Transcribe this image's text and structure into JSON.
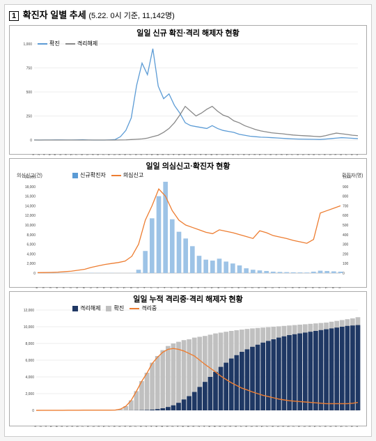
{
  "page": {
    "box_number": "1",
    "main_title": "확진자 일별 추세",
    "subtitle": "(5.22. 0시 기준, 11,142명)"
  },
  "chart1": {
    "type": "line",
    "title": "일일 신규 확진·격리 해제자 현황",
    "legend": [
      {
        "label": "확진",
        "color": "#5b9bd5",
        "style": "line"
      },
      {
        "label": "격리해제",
        "color": "#888888",
        "style": "line"
      }
    ],
    "ylim": [
      0,
      1000
    ],
    "ytick_step": 250,
    "x_labels": [
      "1.20",
      "1.22",
      "1.24",
      "1.26",
      "1.28",
      "2.1",
      "2.3",
      "2.5",
      "2.7",
      "2.9",
      "2.11",
      "2.13",
      "2.15",
      "2.17",
      "2.19",
      "2.21",
      "2.23",
      "2.25",
      "2.27",
      "2.29",
      "3.2",
      "3.4",
      "3.6",
      "3.8",
      "3.10",
      "3.12",
      "3.14",
      "3.16",
      "3.18",
      "3.20",
      "3.22",
      "3.24",
      "3.26",
      "3.28",
      "3.30",
      "4.1",
      "4.3",
      "4.5",
      "4.7",
      "4.9",
      "4.11",
      "4.13",
      "4.15",
      "4.17",
      "4.19",
      "4.21",
      "4.23",
      "4.25",
      "4.27",
      "4.29",
      "5.1",
      "5.3",
      "5.5",
      "5.7",
      "5.9",
      "5.11",
      "5.13",
      "5.15",
      "5.17",
      "5.19",
      "5.21"
    ],
    "series_confirmed": [
      1,
      0,
      1,
      1,
      2,
      2,
      1,
      1,
      2,
      3,
      1,
      0,
      0,
      0,
      2,
      5,
      35,
      100,
      230,
      570,
      800,
      680,
      950,
      560,
      430,
      480,
      360,
      280,
      180,
      150,
      140,
      130,
      120,
      150,
      120,
      100,
      90,
      80,
      60,
      50,
      40,
      35,
      30,
      28,
      25,
      22,
      18,
      15,
      12,
      10,
      9,
      8,
      7,
      6,
      10,
      15,
      20,
      25,
      22,
      18,
      15
    ],
    "series_released": [
      0,
      0,
      0,
      0,
      0,
      0,
      0,
      0,
      0,
      0,
      0,
      0,
      0,
      0,
      0,
      0,
      1,
      2,
      5,
      8,
      12,
      20,
      35,
      50,
      80,
      120,
      180,
      260,
      350,
      300,
      250,
      280,
      320,
      350,
      300,
      260,
      240,
      200,
      180,
      150,
      130,
      110,
      95,
      85,
      75,
      70,
      65,
      58,
      52,
      48,
      45,
      42,
      38,
      35,
      45,
      60,
      72,
      65,
      58,
      50,
      45
    ],
    "colors": {
      "confirmed": "#5b9bd5",
      "released": "#888888"
    },
    "background": "#ffffff",
    "grid_color": "#dddddd"
  },
  "chart2": {
    "type": "combo",
    "title": "일일 의심신고·확진자 현황",
    "legend": [
      {
        "label": "신규확진자",
        "color": "#5b9bd5",
        "style": "bar"
      },
      {
        "label": "의심신고",
        "color": "#ed7d31",
        "style": "line"
      }
    ],
    "y_left_label": "의심신고(건)",
    "y_right_label": "확진자(명)",
    "y_left_lim": [
      0,
      20000
    ],
    "y_left_tick_step": 2000,
    "y_right_lim": [
      0,
      1000
    ],
    "y_right_tick_step": 100,
    "x_labels": [
      "1.8",
      "1.10",
      "1.13",
      "1.16",
      "1.19",
      "1.22",
      "1.25",
      "1.28",
      "1.31",
      "2.3",
      "2.6",
      "2.9",
      "2.12",
      "2.15",
      "2.18",
      "2.21",
      "2.24",
      "2.27",
      "3.1",
      "3.4",
      "3.7",
      "3.10",
      "3.13",
      "3.16",
      "3.19",
      "3.22",
      "3.25",
      "3.28",
      "3.31",
      "4.3",
      "4.6",
      "4.9",
      "4.12",
      "4.15",
      "4.18",
      "4.21",
      "4.24",
      "4.27",
      "4.30",
      "5.3",
      "5.6",
      "5.9",
      "5.12",
      "5.15",
      "5.18",
      "5.21"
    ],
    "bars_confirmed": [
      1,
      0,
      1,
      1,
      2,
      0,
      2,
      1,
      3,
      2,
      1,
      2,
      1,
      0,
      2,
      35,
      230,
      570,
      800,
      950,
      560,
      430,
      360,
      280,
      180,
      140,
      130,
      150,
      120,
      100,
      80,
      50,
      35,
      28,
      22,
      15,
      12,
      10,
      8,
      7,
      6,
      15,
      25,
      22,
      18,
      15
    ],
    "line_suspect": [
      100,
      120,
      150,
      200,
      300,
      400,
      600,
      800,
      1200,
      1500,
      1800,
      2000,
      2200,
      2500,
      3500,
      6000,
      11000,
      14000,
      17500,
      16000,
      13000,
      11000,
      10000,
      9500,
      9000,
      8500,
      8200,
      9000,
      8700,
      8400,
      8000,
      7600,
      7200,
      8800,
      8400,
      7800,
      7500,
      7200,
      6800,
      6500,
      6200,
      7000,
      12500,
      13000,
      13500,
      14000
    ],
    "colors": {
      "bar": "#9dc3e6",
      "line": "#ed7d31"
    },
    "background": "#ffffff"
  },
  "chart3": {
    "type": "combo",
    "title": "일일 누적 격리중·격리 해제자 현황",
    "legend": [
      {
        "label": "격리해제",
        "color": "#1f3864",
        "style": "bar"
      },
      {
        "label": "확진",
        "color": "#c0c0c0",
        "style": "bar"
      },
      {
        "label": "격리중",
        "color": "#ed7d31",
        "style": "line"
      }
    ],
    "ylim": [
      0,
      12000
    ],
    "ytick_step": 2000,
    "x_labels": [
      "1.20",
      "1.22",
      "1.24",
      "1.26",
      "1.28",
      "1.30",
      "2.1",
      "2.3",
      "2.5",
      "2.7",
      "2.9",
      "2.11",
      "2.13",
      "2.15",
      "2.17",
      "2.19",
      "2.21",
      "2.23",
      "2.25",
      "2.27",
      "2.29",
      "3.2",
      "3.4",
      "3.6",
      "3.8",
      "3.10",
      "3.12",
      "3.14",
      "3.16",
      "3.18",
      "3.20",
      "3.22",
      "3.24",
      "3.26",
      "3.28",
      "3.30",
      "4.1",
      "4.3",
      "4.5",
      "4.7",
      "4.9",
      "4.11",
      "4.13",
      "4.15",
      "4.17",
      "4.19",
      "4.21",
      "4.23",
      "4.25",
      "4.27",
      "4.29",
      "5.1",
      "5.3",
      "5.5",
      "5.7",
      "5.9",
      "5.11",
      "5.13",
      "5.15",
      "5.17",
      "5.19",
      "5.21"
    ],
    "bars_confirmed_cum": [
      1,
      2,
      3,
      4,
      6,
      8,
      12,
      15,
      18,
      24,
      27,
      28,
      28,
      28,
      30,
      35,
      150,
      500,
      1200,
      2300,
      3500,
      4500,
      5700,
      6500,
      7200,
      7700,
      8000,
      8200,
      8400,
      8500,
      8700,
      8800,
      8900,
      9050,
      9200,
      9300,
      9400,
      9500,
      9580,
      9660,
      9740,
      9800,
      9850,
      9900,
      9950,
      10000,
      10050,
      10100,
      10150,
      10200,
      10250,
      10300,
      10350,
      10400,
      10450,
      10500,
      10600,
      10700,
      10800,
      10900,
      11000,
      11142
    ],
    "bars_released_cum": [
      0,
      0,
      0,
      0,
      0,
      0,
      0,
      0,
      0,
      0,
      0,
      0,
      0,
      0,
      0,
      0,
      1,
      3,
      10,
      18,
      30,
      50,
      90,
      150,
      250,
      400,
      600,
      900,
      1300,
      1700,
      2200,
      2800,
      3400,
      4000,
      4600,
      5200,
      5700,
      6200,
      6600,
      7000,
      7300,
      7600,
      7850,
      8100,
      8300,
      8500,
      8700,
      8850,
      9000,
      9100,
      9200,
      9300,
      9400,
      9500,
      9600,
      9700,
      9800,
      9900,
      10000,
      10100,
      10150,
      10200
    ],
    "line_isolating": [
      1,
      2,
      3,
      4,
      6,
      8,
      12,
      15,
      18,
      24,
      27,
      28,
      28,
      28,
      30,
      35,
      149,
      497,
      1190,
      2282,
      3470,
      4450,
      5610,
      6350,
      6950,
      7300,
      7400,
      7300,
      7100,
      6800,
      6500,
      6000,
      5500,
      5050,
      4600,
      4100,
      3700,
      3300,
      2980,
      2660,
      2440,
      2200,
      2000,
      1800,
      1650,
      1500,
      1350,
      1250,
      1150,
      1100,
      1050,
      1000,
      950,
      900,
      850,
      800,
      800,
      800,
      800,
      800,
      850,
      942
    ],
    "colors": {
      "released": "#1f3864",
      "confirmed": "#c0c0c0",
      "isolating": "#ed7d31"
    },
    "background": "#ffffff"
  }
}
